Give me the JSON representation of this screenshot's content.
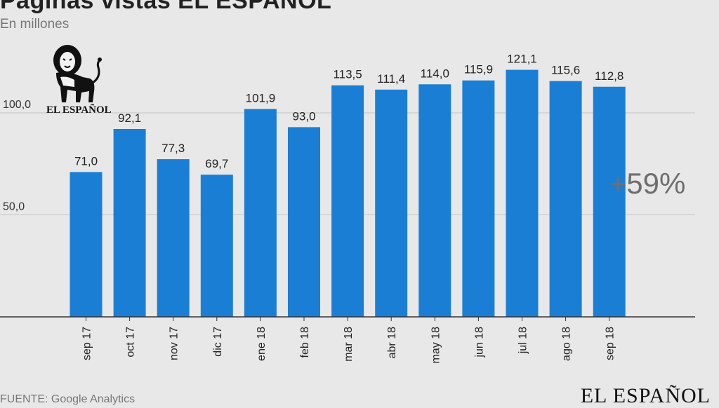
{
  "header": {
    "title": "Páginas vistas EL ESPAÑOL",
    "subtitle": "En millones"
  },
  "footer": {
    "source": "FUENTE: Google Analytics",
    "brand": "EL ESPAÑOL"
  },
  "logo": {
    "text": "EL ESPAÑOL",
    "icon": "lion-icon"
  },
  "annotation": {
    "text": "+59%"
  },
  "colors": {
    "bar": "#1a7fd4",
    "background": "#e8e8e8",
    "annotation": "#6e6e6e"
  },
  "chart_data": {
    "type": "bar",
    "categories": [
      "sep 17",
      "oct 17",
      "nov 17",
      "dic 17",
      "ene 18",
      "feb 18",
      "mar 18",
      "abr 18",
      "may 18",
      "jun 18",
      "jul 18",
      "ago 18",
      "sep 18"
    ],
    "values": [
      71.0,
      92.1,
      77.3,
      69.7,
      101.9,
      93.0,
      113.5,
      111.4,
      114.0,
      115.9,
      121.1,
      115.6,
      112.8
    ],
    "value_labels": [
      "71,0",
      "92,1",
      "77,3",
      "69,7",
      "101,9",
      "93,0",
      "113,5",
      "111,4",
      "114,0",
      "115,9",
      "121,1",
      "115,6",
      "112,8"
    ],
    "y_tick_values": [
      50,
      100
    ],
    "y_tick_labels": [
      "50,0",
      "100,0"
    ],
    "ylim": [
      0,
      125
    ],
    "grid": true,
    "title": "Páginas vistas EL ESPAÑOL",
    "ylabel": "En millones",
    "xlabel": ""
  }
}
